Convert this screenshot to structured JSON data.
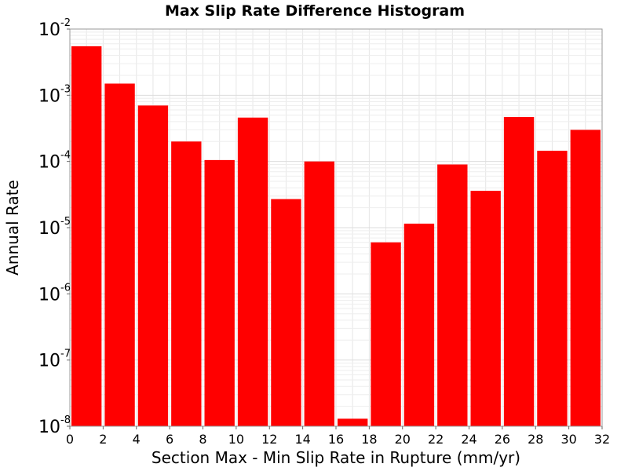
{
  "chart_data": {
    "type": "bar",
    "title": "Max Slip Rate Difference Histogram",
    "xlabel": "Section Max - Min Slip Rate in Rupture (mm/yr)",
    "ylabel": "Annual Rate",
    "y_scale": "log",
    "xlim": [
      0,
      32
    ],
    "ylim": [
      1e-08,
      0.01
    ],
    "bin_width": 2,
    "grid": true,
    "x_ticks": [
      "0",
      "2",
      "4",
      "6",
      "8",
      "10",
      "12",
      "14",
      "16",
      "18",
      "20",
      "22",
      "24",
      "26",
      "28",
      "30",
      "32"
    ],
    "y_ticks": [
      {
        "base": "10",
        "exp": "-8"
      },
      {
        "base": "10",
        "exp": "-7"
      },
      {
        "base": "10",
        "exp": "-6"
      },
      {
        "base": "10",
        "exp": "-5"
      },
      {
        "base": "10",
        "exp": "-4"
      },
      {
        "base": "10",
        "exp": "-3"
      },
      {
        "base": "10",
        "exp": "-2"
      }
    ],
    "bar_color": "#ff0000",
    "bars": [
      {
        "x": 1,
        "value": 0.0055
      },
      {
        "x": 3,
        "value": 0.0015
      },
      {
        "x": 5,
        "value": 0.0007
      },
      {
        "x": 7,
        "value": 0.0002
      },
      {
        "x": 9,
        "value": 0.000105
      },
      {
        "x": 11,
        "value": 0.00046
      },
      {
        "x": 13,
        "value": 2.7e-05
      },
      {
        "x": 15,
        "value": 0.0001
      },
      {
        "x": 17,
        "value": 1.3e-08
      },
      {
        "x": 19,
        "value": 6e-06
      },
      {
        "x": 21,
        "value": 1.15e-05
      },
      {
        "x": 23,
        "value": 9e-05
      },
      {
        "x": 25,
        "value": 3.6e-05
      },
      {
        "x": 27,
        "value": 0.00047
      },
      {
        "x": 29,
        "value": 0.000145
      },
      {
        "x": 31,
        "value": 0.0003
      }
    ]
  }
}
